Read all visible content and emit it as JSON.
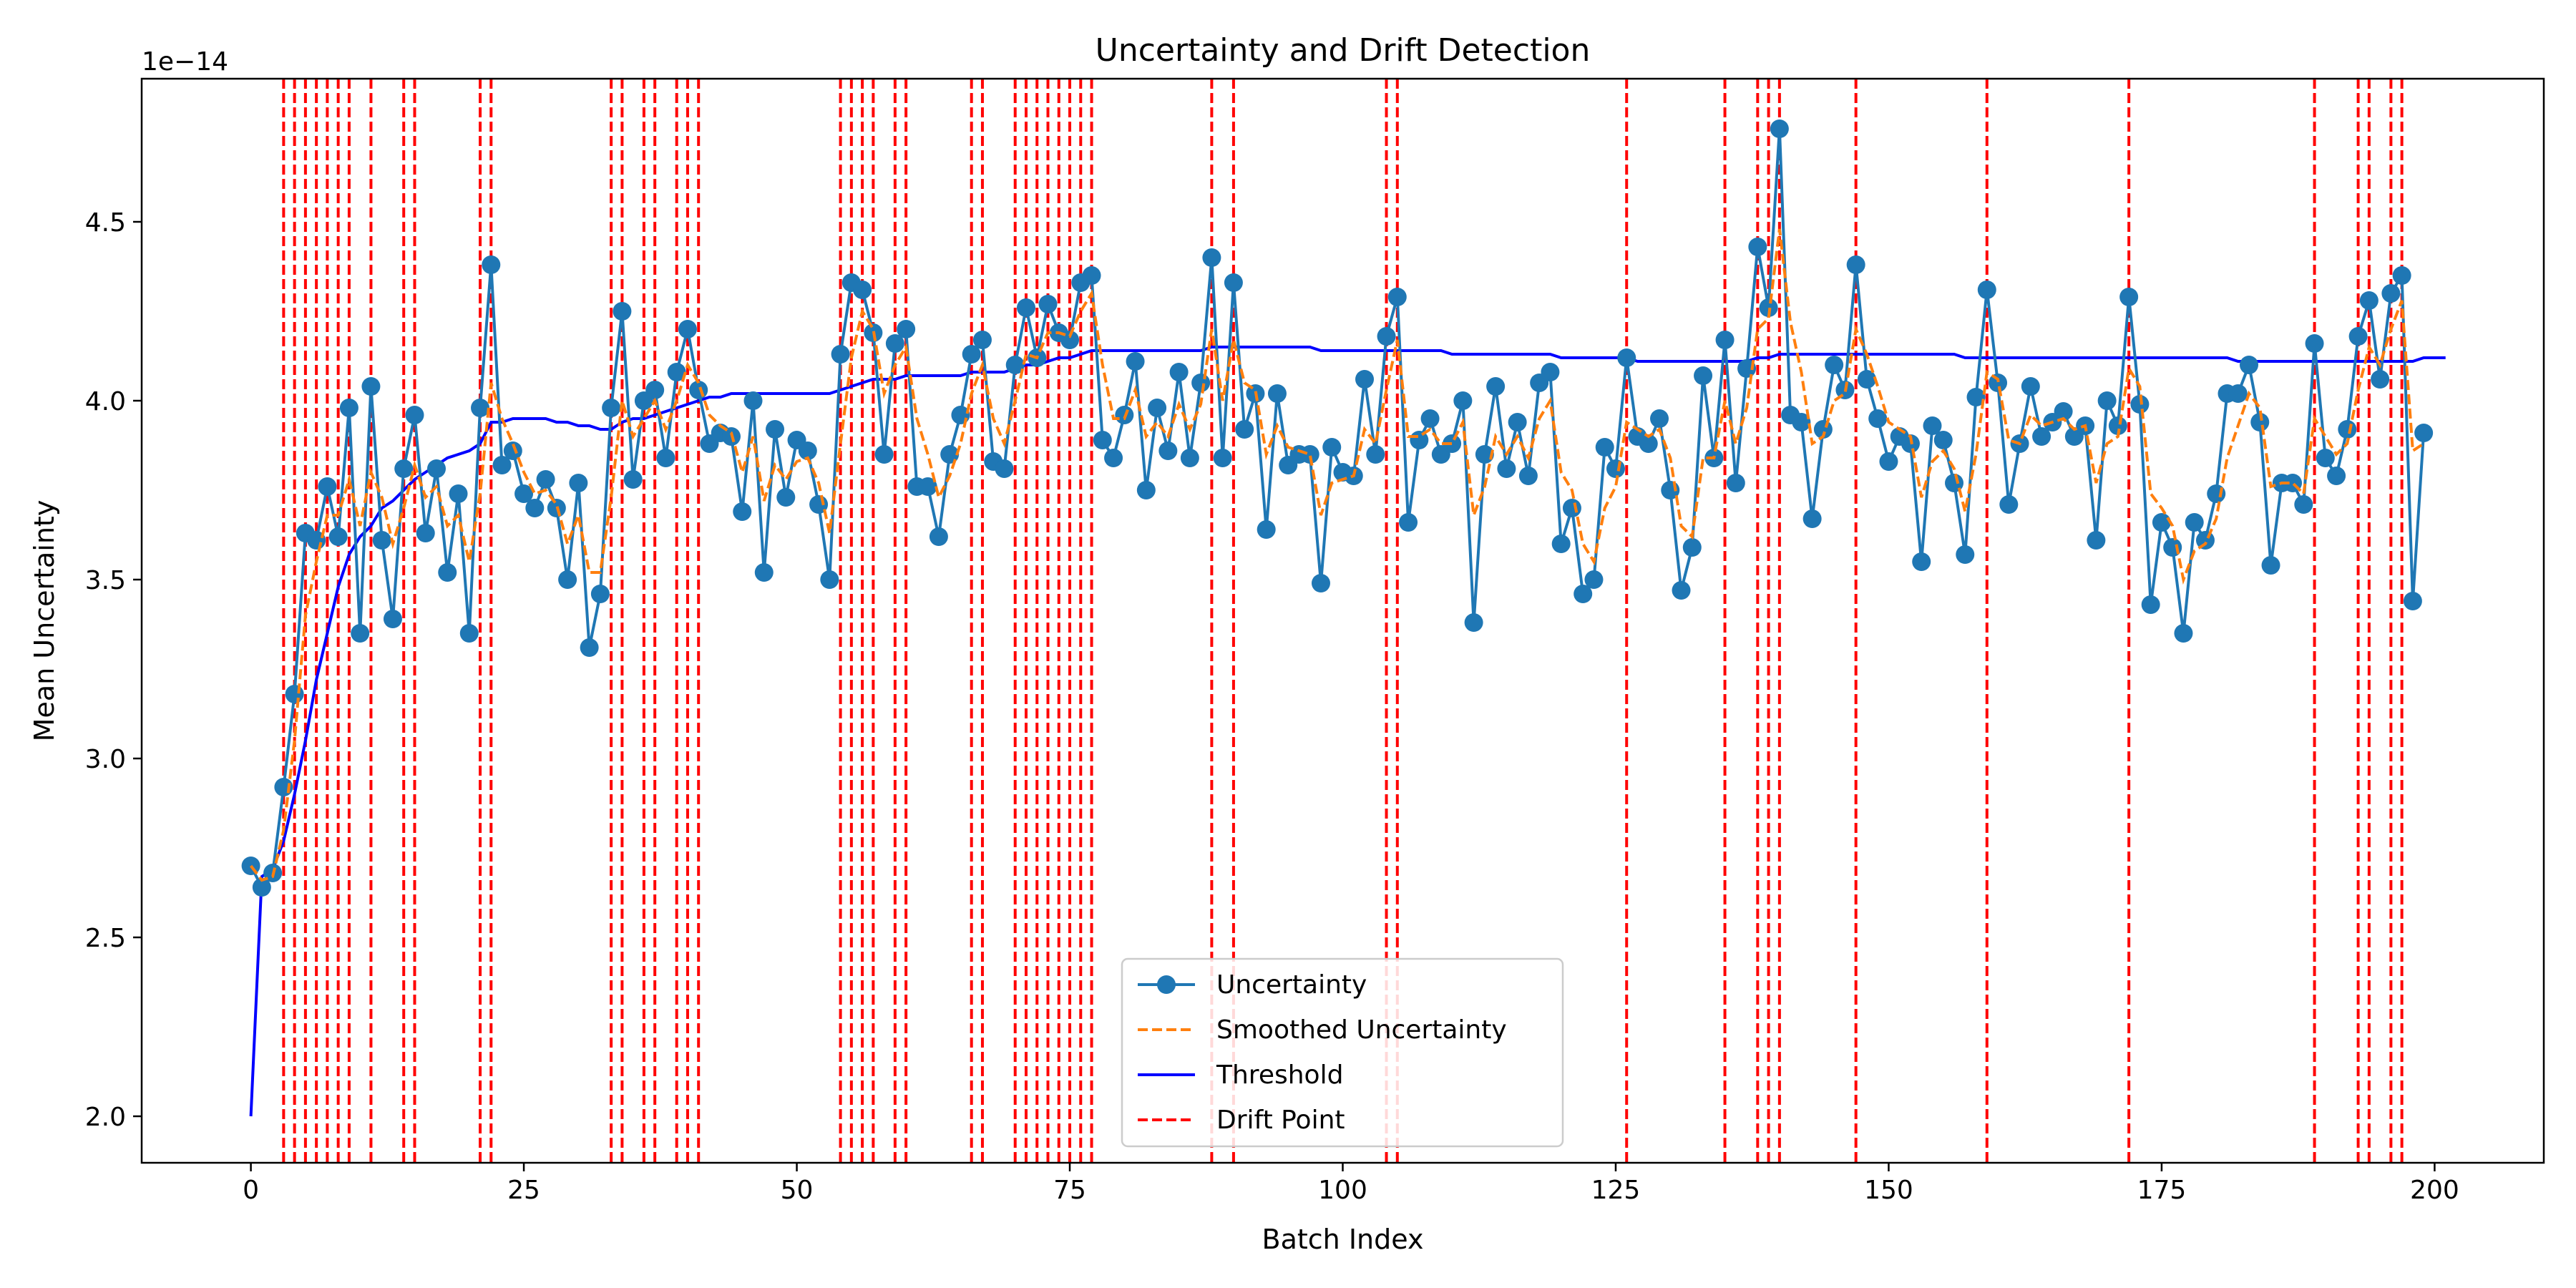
{
  "chart_data": {
    "type": "line",
    "title": "Uncertainty and Drift Detection",
    "xlabel": "Batch Index",
    "ylabel": "Mean Uncertainty",
    "y_offset_label": "1e−14",
    "xlim": [
      -10,
      210
    ],
    "ylim": [
      1.87,
      4.9
    ],
    "x_ticks": [
      0,
      25,
      50,
      75,
      100,
      125,
      150,
      175,
      200
    ],
    "y_ticks": [
      2.0,
      2.5,
      3.0,
      3.5,
      4.0,
      4.5
    ],
    "y_tick_labels": [
      "2.0",
      "2.5",
      "3.0",
      "3.5",
      "4.0",
      "4.5"
    ],
    "legend_position": "lower-center",
    "colors": {
      "uncertainty": "#1f77b4",
      "smoothed": "#ff7f0e",
      "threshold": "#0000ff",
      "drift": "#ff0000"
    },
    "legend": [
      {
        "label": "Uncertainty",
        "key": "uncertainty",
        "style": "line-marker"
      },
      {
        "label": "Smoothed Uncertainty",
        "key": "smoothed",
        "style": "dashed"
      },
      {
        "label": "Threshold",
        "key": "threshold",
        "style": "solid"
      },
      {
        "label": "Drift Point",
        "key": "drift",
        "style": "dashed"
      }
    ],
    "series": [
      {
        "name": "Uncertainty",
        "values": [
          2.7,
          2.64,
          2.68,
          2.92,
          3.18,
          3.63,
          3.61,
          3.76,
          3.62,
          3.98,
          3.35,
          4.04,
          3.61,
          3.39,
          3.81,
          3.96,
          3.63,
          3.81,
          3.52,
          3.74,
          3.35,
          3.98,
          4.38,
          3.82,
          3.86,
          3.74,
          3.7,
          3.78,
          3.7,
          3.5,
          3.77,
          3.31,
          3.46,
          3.98,
          4.25,
          3.78,
          4.0,
          4.03,
          3.84,
          4.08,
          4.2,
          4.03,
          3.88,
          3.91,
          3.9,
          3.69,
          4.0,
          3.52,
          3.92,
          3.73,
          3.89,
          3.86,
          3.71,
          3.5,
          4.13,
          4.33,
          4.31,
          4.19,
          3.85,
          4.16,
          4.2,
          3.76,
          3.76,
          3.62,
          3.85,
          3.96,
          4.13,
          4.17,
          3.83,
          3.81,
          4.1,
          4.26,
          4.12,
          4.27,
          4.19,
          4.17,
          4.33,
          4.35,
          3.89,
          3.84,
          3.96,
          4.11,
          3.75,
          3.98,
          3.86,
          4.08,
          3.84,
          4.05,
          4.4,
          3.84,
          4.33,
          3.92,
          4.02,
          3.64,
          4.02,
          3.82,
          3.85,
          3.85,
          3.49,
          3.87,
          3.8,
          3.79,
          4.06,
          3.85,
          4.18,
          4.29,
          3.66,
          3.89,
          3.95,
          3.85,
          3.88,
          4.0,
          3.38,
          3.85,
          4.04,
          3.81,
          3.94,
          3.79,
          4.05,
          4.08,
          3.6,
          3.7,
          3.46,
          3.5,
          3.87,
          3.81,
          4.12,
          3.9,
          3.88,
          3.95,
          3.75,
          3.47,
          3.59,
          4.07,
          3.84,
          4.17,
          3.77,
          4.09,
          4.43,
          4.26,
          4.76,
          3.96,
          3.94,
          3.67,
          3.92,
          4.1,
          4.03,
          4.38,
          4.06,
          3.95,
          3.83,
          3.9,
          3.88,
          3.55,
          3.93,
          3.89,
          3.77,
          3.57,
          4.01,
          4.31,
          4.05,
          3.71,
          3.88,
          4.04,
          3.9,
          3.94,
          3.97,
          3.9,
          3.93,
          3.61,
          4.0,
          3.93,
          4.29,
          3.99,
          3.43,
          3.66,
          3.59,
          3.35,
          3.66,
          3.61,
          3.74,
          4.02,
          4.02,
          4.1,
          3.94,
          3.54,
          3.77,
          3.77,
          3.71,
          4.16,
          3.84,
          3.79,
          3.92,
          4.18,
          4.28,
          4.06,
          4.3,
          4.35,
          3.44,
          3.91
        ]
      },
      {
        "name": "Smoothed Uncertainty",
        "values": [
          2.7,
          2.66,
          2.67,
          2.8,
          3.05,
          3.4,
          3.55,
          3.68,
          3.68,
          3.78,
          3.65,
          3.8,
          3.73,
          3.6,
          3.7,
          3.82,
          3.73,
          3.76,
          3.65,
          3.68,
          3.55,
          3.74,
          4.05,
          3.95,
          3.88,
          3.8,
          3.74,
          3.75,
          3.71,
          3.6,
          3.68,
          3.52,
          3.52,
          3.73,
          4.0,
          3.9,
          3.95,
          4.0,
          3.92,
          4.0,
          4.1,
          4.05,
          3.96,
          3.93,
          3.91,
          3.8,
          3.9,
          3.72,
          3.82,
          3.78,
          3.83,
          3.84,
          3.77,
          3.63,
          3.88,
          4.12,
          4.25,
          4.2,
          4.02,
          4.1,
          4.15,
          3.95,
          3.85,
          3.73,
          3.79,
          3.88,
          4.02,
          4.1,
          3.95,
          3.88,
          4.0,
          4.13,
          4.12,
          4.19,
          4.19,
          4.18,
          4.25,
          4.3,
          4.1,
          3.95,
          3.95,
          4.03,
          3.9,
          3.94,
          3.9,
          3.99,
          3.92,
          3.99,
          4.2,
          4.0,
          4.17,
          4.05,
          4.03,
          3.85,
          3.93,
          3.87,
          3.86,
          3.85,
          3.68,
          3.77,
          3.78,
          3.79,
          3.92,
          3.88,
          4.03,
          4.17,
          3.9,
          3.9,
          3.92,
          3.88,
          3.88,
          3.94,
          3.68,
          3.76,
          3.9,
          3.85,
          3.9,
          3.84,
          3.95,
          4.0,
          3.8,
          3.75,
          3.6,
          3.55,
          3.7,
          3.76,
          3.94,
          3.92,
          3.9,
          3.92,
          3.84,
          3.65,
          3.62,
          3.84,
          3.84,
          4.0,
          3.88,
          3.98,
          4.2,
          4.23,
          4.48,
          4.22,
          4.08,
          3.88,
          3.9,
          4.0,
          4.02,
          4.2,
          4.13,
          4.04,
          3.94,
          3.92,
          3.9,
          3.73,
          3.83,
          3.86,
          3.81,
          3.69,
          3.85,
          4.08,
          4.06,
          3.89,
          3.88,
          3.96,
          3.93,
          3.94,
          3.95,
          3.92,
          3.93,
          3.77,
          3.88,
          3.9,
          4.09,
          4.04,
          3.74,
          3.7,
          3.65,
          3.5,
          3.58,
          3.6,
          3.67,
          3.84,
          3.93,
          4.02,
          3.98,
          3.76,
          3.77,
          3.77,
          3.74,
          3.95,
          3.9,
          3.85,
          3.88,
          4.03,
          4.15,
          4.1,
          4.2,
          4.28,
          3.86,
          3.88
        ]
      },
      {
        "name": "Threshold",
        "values": [
          2.0,
          2.67,
          2.69,
          2.77,
          2.9,
          3.05,
          3.22,
          3.35,
          3.48,
          3.57,
          3.62,
          3.65,
          3.7,
          3.72,
          3.75,
          3.78,
          3.8,
          3.82,
          3.84,
          3.85,
          3.86,
          3.88,
          3.94,
          3.94,
          3.95,
          3.95,
          3.95,
          3.95,
          3.94,
          3.94,
          3.93,
          3.93,
          3.92,
          3.92,
          3.94,
          3.95,
          3.95,
          3.96,
          3.97,
          3.98,
          3.99,
          4.0,
          4.01,
          4.01,
          4.02,
          4.02,
          4.02,
          4.02,
          4.02,
          4.02,
          4.02,
          4.02,
          4.02,
          4.02,
          4.03,
          4.04,
          4.05,
          4.06,
          4.06,
          4.06,
          4.07,
          4.07,
          4.07,
          4.07,
          4.07,
          4.07,
          4.08,
          4.08,
          4.08,
          4.08,
          4.09,
          4.1,
          4.1,
          4.11,
          4.12,
          4.12,
          4.13,
          4.14,
          4.14,
          4.14,
          4.14,
          4.14,
          4.14,
          4.14,
          4.14,
          4.14,
          4.14,
          4.14,
          4.15,
          4.15,
          4.15,
          4.15,
          4.15,
          4.15,
          4.15,
          4.15,
          4.15,
          4.15,
          4.14,
          4.14,
          4.14,
          4.14,
          4.14,
          4.14,
          4.14,
          4.14,
          4.14,
          4.14,
          4.14,
          4.14,
          4.13,
          4.13,
          4.13,
          4.13,
          4.13,
          4.13,
          4.13,
          4.13,
          4.13,
          4.13,
          4.12,
          4.12,
          4.12,
          4.12,
          4.12,
          4.12,
          4.12,
          4.11,
          4.11,
          4.11,
          4.11,
          4.11,
          4.11,
          4.11,
          4.11,
          4.11,
          4.11,
          4.11,
          4.12,
          4.12,
          4.13,
          4.13,
          4.13,
          4.13,
          4.13,
          4.13,
          4.13,
          4.13,
          4.13,
          4.13,
          4.13,
          4.13,
          4.13,
          4.13,
          4.13,
          4.13,
          4.13,
          4.12,
          4.12,
          4.12,
          4.12,
          4.12,
          4.12,
          4.12,
          4.12,
          4.12,
          4.12,
          4.12,
          4.12,
          4.12,
          4.12,
          4.12,
          4.12,
          4.12,
          4.12,
          4.12,
          4.12,
          4.12,
          4.12,
          4.12,
          4.12,
          4.12,
          4.11,
          4.11,
          4.11,
          4.11,
          4.11,
          4.11,
          4.11,
          4.11,
          4.11,
          4.11,
          4.11,
          4.11,
          4.11,
          4.11,
          4.11,
          4.11,
          4.11,
          4.12,
          4.12,
          4.12
        ]
      }
    ],
    "drift_points": [
      3,
      4,
      5,
      6,
      7,
      8,
      9,
      11,
      14,
      15,
      21,
      22,
      33,
      34,
      36,
      37,
      39,
      40,
      41,
      54,
      55,
      56,
      57,
      59,
      60,
      66,
      67,
      70,
      71,
      72,
      73,
      74,
      75,
      76,
      77,
      88,
      90,
      104,
      105,
      126,
      135,
      138,
      139,
      140,
      147,
      159,
      172,
      189,
      193,
      194,
      196,
      197
    ]
  }
}
